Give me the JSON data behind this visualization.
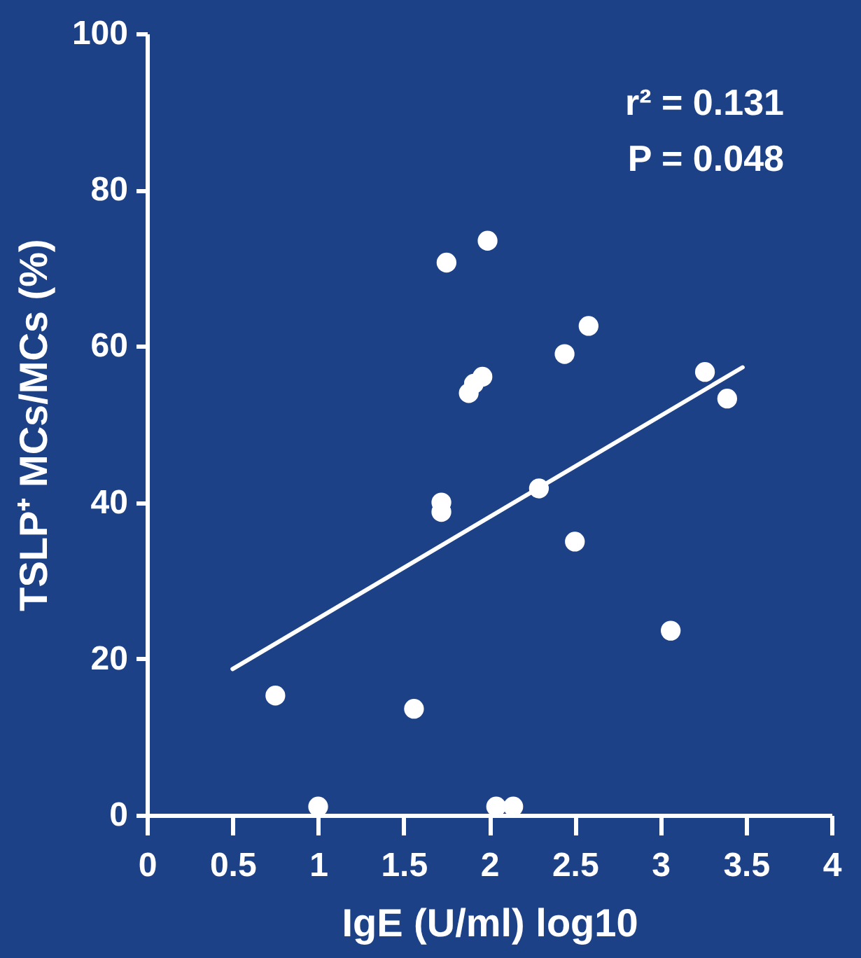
{
  "chart_data": {
    "type": "scatter",
    "marker": "circle",
    "xlabel": "IgE (U/ml) log10",
    "ylabel": "TSLP⁺ MCs/MCs (%)",
    "annotations": [
      "r² = 0.131",
      "P = 0.048"
    ],
    "series": [
      {
        "color": "#ffffff",
        "x": [
          0.75,
          1.0,
          1.56,
          1.72,
          1.72,
          1.75,
          1.88,
          1.91,
          1.96,
          1.99,
          2.04,
          2.14,
          2.29,
          2.44,
          2.5,
          2.58,
          3.06,
          3.26,
          3.39
        ],
        "values": [
          15.3,
          1.1,
          13.6,
          40,
          38.8,
          70.7,
          54,
          55.2,
          56.1,
          73.5,
          1.1,
          1.1,
          41.8,
          59,
          35,
          62.6,
          23.6,
          56.7,
          53.3
        ]
      },
      {
        "type": "line",
        "color": "#ffffff",
        "marker": "none",
        "line_style": "solid",
        "x": [
          0.5,
          3.48
        ],
        "values": [
          18.7,
          57.3
        ]
      }
    ],
    "xlim": [
      0,
      4
    ],
    "xticks": [
      0,
      0.5,
      1,
      1.5,
      2,
      2.5,
      3,
      3.5,
      4
    ],
    "ylim": [
      0,
      100
    ],
    "yticks": [
      0,
      20,
      40,
      60,
      80,
      100
    ],
    "grid": false
  }
}
